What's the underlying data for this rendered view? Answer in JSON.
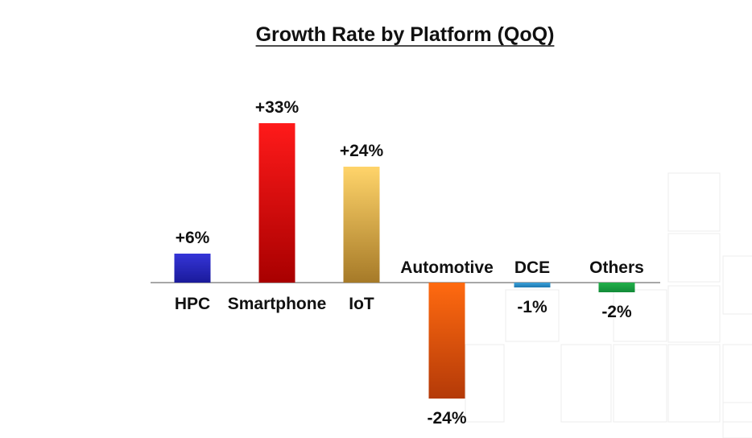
{
  "chart_data": {
    "type": "bar",
    "title": "Growth Rate by Platform (QoQ)",
    "xlabel": "",
    "ylabel": "",
    "categories": [
      "HPC",
      "Smartphone",
      "IoT",
      "Automotive",
      "DCE",
      "Others"
    ],
    "values": [
      6,
      33,
      24,
      -24,
      -1,
      -2
    ],
    "value_labels": [
      "+6%",
      "+33%",
      "+24%",
      "-24%",
      "-1%",
      "-2%"
    ],
    "unit": "%",
    "ylim": [
      -30,
      40
    ],
    "grid": false,
    "legend": "none",
    "colors": [
      {
        "top": "#3535d8",
        "bottom": "#1a1a9a"
      },
      {
        "top": "#ff1a1a",
        "bottom": "#a80000"
      },
      {
        "top": "#ffd46a",
        "bottom": "#a67a28"
      },
      {
        "top": "#ff6a10",
        "bottom": "#b43a08"
      },
      {
        "top": "#3aa0d8",
        "bottom": "#1e78b0"
      },
      {
        "top": "#22b04a",
        "bottom": "#128a38"
      }
    ]
  }
}
